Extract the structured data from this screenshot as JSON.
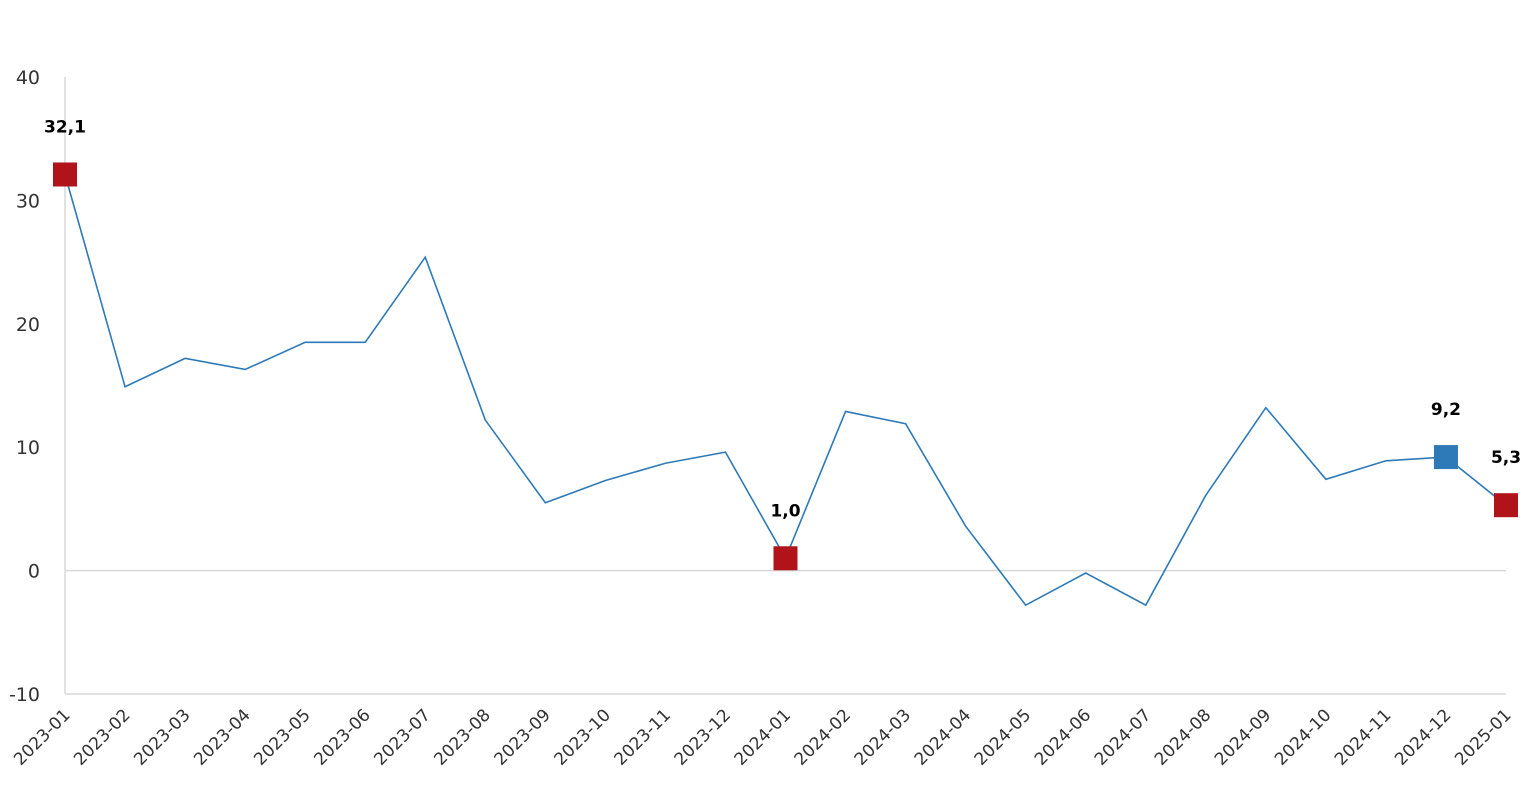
{
  "chart_data": {
    "type": "line",
    "x": [
      "2023-01",
      "2023-02",
      "2023-03",
      "2023-04",
      "2023-05",
      "2023-06",
      "2023-07",
      "2023-08",
      "2023-09",
      "2023-10",
      "2023-11",
      "2023-12",
      "2024-01",
      "2024-02",
      "2024-03",
      "2024-04",
      "2024-05",
      "2024-06",
      "2024-07",
      "2024-08",
      "2024-09",
      "2024-10",
      "2024-11",
      "2024-12",
      "2025-01"
    ],
    "values": [
      32.1,
      14.9,
      17.2,
      16.3,
      18.5,
      18.5,
      25.4,
      12.2,
      5.5,
      7.3,
      8.7,
      9.6,
      1.0,
      12.9,
      11.9,
      3.6,
      -2.8,
      -0.2,
      -2.8,
      6.1,
      13.2,
      7.4,
      8.9,
      9.2,
      5.3
    ],
    "value_labels": [
      "32,1",
      null,
      null,
      null,
      null,
      null,
      null,
      null,
      null,
      null,
      null,
      null,
      "1,0",
      null,
      null,
      null,
      null,
      null,
      null,
      null,
      null,
      null,
      null,
      "9,2",
      "5,3"
    ],
    "marker_colors": [
      "#b01319",
      null,
      null,
      null,
      null,
      null,
      null,
      null,
      null,
      null,
      null,
      null,
      "#b01319",
      null,
      null,
      null,
      null,
      null,
      null,
      null,
      null,
      null,
      null,
      "#2e7ab8",
      "#b01319"
    ],
    "color": "#2e7ab8",
    "ylim": [
      -10,
      40
    ],
    "yticks": [
      -10,
      0,
      10,
      20,
      30,
      40
    ]
  }
}
